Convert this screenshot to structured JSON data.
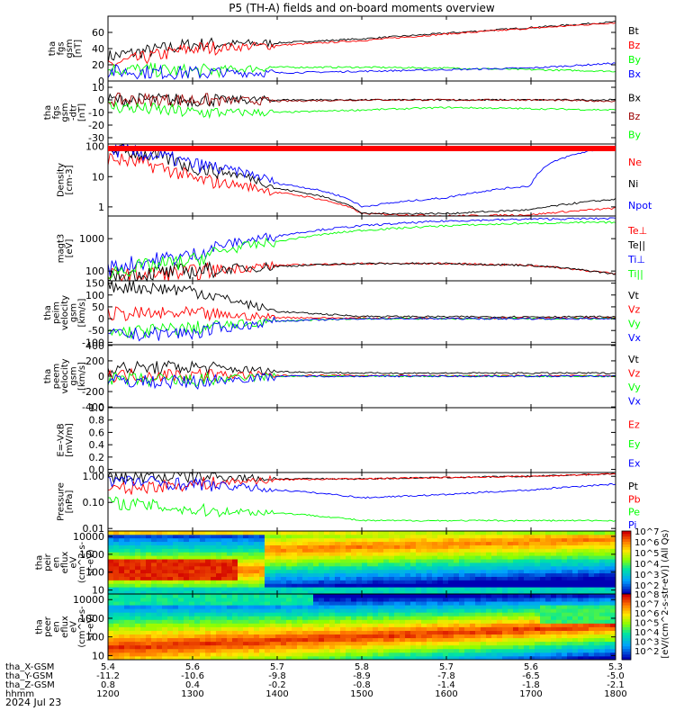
{
  "page": {
    "title": "P5 (TH-A) fields and on-board moments overview",
    "date": "2024 Jul 23",
    "cbar_label": "[eV/(cm^2-s-str-eV)] (All Qs)"
  },
  "colors": {
    "black": "#000000",
    "red": "#ff0000",
    "green": "#00ff00",
    "blue": "#0000ff",
    "darkred": "#9b0000"
  },
  "time": {
    "start_hhmm": "1200",
    "end_hhmm": "1800"
  },
  "ephemeris": {
    "rows": [
      {
        "label": "tha_X-GSM",
        "values": [
          "5.4",
          "5.6",
          "5.7",
          "5.8",
          "5.7",
          "5.6",
          "5.3"
        ]
      },
      {
        "label": "tha_Y-GSM",
        "values": [
          "-11.2",
          "-10.6",
          "-9.8",
          "-8.9",
          "-7.8",
          "-6.5",
          "-5.0"
        ]
      },
      {
        "label": "tha_Z-GSM",
        "values": [
          "0.8",
          "0.4",
          "-0.2",
          "-0.8",
          "-1.4",
          "-1.8",
          "-2.1"
        ]
      },
      {
        "label": "hhmm",
        "values": [
          "1200",
          "1300",
          "1400",
          "1500",
          "1600",
          "1700",
          "1800"
        ]
      }
    ]
  },
  "chart_data": [
    {
      "id": "fgs_gsm",
      "type": "line",
      "ylabel": [
        "tha",
        "fgs",
        "gsm",
        "[nT]"
      ],
      "ylim": [
        0,
        80
      ],
      "yticks": [
        "0",
        "20",
        "40",
        "60"
      ],
      "series": [
        {
          "name": "Bt",
          "color": "#000000",
          "x": [
            "1200",
            "1300",
            "1400",
            "1500",
            "1600",
            "1700",
            "1800"
          ],
          "values": [
            30,
            45,
            47,
            52,
            59,
            66,
            73
          ]
        },
        {
          "name": "Bz",
          "color": "#ff0000",
          "x": [
            "1200",
            "1300",
            "1400",
            "1500",
            "1600",
            "1700",
            "1800"
          ],
          "values": [
            20,
            40,
            44,
            50,
            58,
            65,
            72
          ]
        },
        {
          "name": "By",
          "color": "#00ff00",
          "x": [
            "1200",
            "1300",
            "1400",
            "1500",
            "1600",
            "1700",
            "1800"
          ],
          "values": [
            15,
            12,
            17,
            17,
            16,
            14,
            12
          ]
        },
        {
          "name": "Bx",
          "color": "#0000ff",
          "x": [
            "1200",
            "1300",
            "1400",
            "1500",
            "1600",
            "1700",
            "1800"
          ],
          "values": [
            12,
            10,
            10,
            12,
            14,
            16,
            22
          ]
        }
      ]
    },
    {
      "id": "fgs_gsm_dtrend",
      "type": "line",
      "ylabel": [
        "tha",
        "fgs",
        "gsm",
        "-dtr",
        "[nT]"
      ],
      "ylim": [
        -35,
        15
      ],
      "yticks": [
        "-30",
        "-20",
        "-10",
        "0",
        "10"
      ],
      "series": [
        {
          "name": "Bx",
          "color": "#000000",
          "x": [
            "1200",
            "1300",
            "1400",
            "1500",
            "1600",
            "1700",
            "1800"
          ],
          "values": [
            0,
            0,
            0,
            0,
            0,
            0,
            0
          ]
        },
        {
          "name": "Bz",
          "color": "#9b0000",
          "x": [
            "1200",
            "1300",
            "1400",
            "1500",
            "1600",
            "1700",
            "1800"
          ],
          "values": [
            0,
            0,
            -1,
            0,
            0,
            0,
            -1
          ]
        },
        {
          "name": "By",
          "color": "#00ff00",
          "x": [
            "1200",
            "1300",
            "1400",
            "1500",
            "1600",
            "1700",
            "1800"
          ],
          "values": [
            -5,
            -10,
            -10,
            -8,
            -6,
            -7,
            -8
          ]
        }
      ]
    },
    {
      "id": "density",
      "type": "line",
      "yscale": "log",
      "ylabel": [
        "Density",
        "[cm-3]"
      ],
      "ylim": [
        0.5,
        120
      ],
      "yticks": [
        "1",
        "10",
        "100"
      ],
      "series": [
        {
          "name": "Ne",
          "color": "#ff0000",
          "x": [
            "1200",
            "1300",
            "1400",
            "1500",
            "1600",
            "1700",
            "1800"
          ],
          "values": [
            40,
            8,
            3,
            0.6,
            0.5,
            0.55,
            0.9
          ]
        },
        {
          "name": "Ni",
          "color": "#000000",
          "x": [
            "1200",
            "1300",
            "1400",
            "1500",
            "1600",
            "1700",
            "1800"
          ],
          "values": [
            80,
            20,
            4,
            0.6,
            0.6,
            0.8,
            1.8
          ]
        },
        {
          "name": "Npot",
          "color": "#0000ff",
          "x": [
            "1200",
            "1300",
            "1400",
            "1500",
            "1600",
            "1700",
            "1800"
          ],
          "values": [
            80,
            25,
            6,
            1.0,
            2,
            5,
            100
          ]
        }
      ]
    },
    {
      "id": "temperature",
      "type": "line",
      "yscale": "log",
      "ylabel": [
        "magt3",
        "[eV]"
      ],
      "ylim": [
        50,
        5000
      ],
      "yticks": [
        "100",
        "1000"
      ],
      "series": [
        {
          "name": "Te⊥",
          "color": "#ff0000",
          "x": [
            "1200",
            "1300",
            "1400",
            "1500",
            "1600",
            "1700",
            "1800"
          ],
          "values": [
            70,
            90,
            150,
            170,
            170,
            150,
            80
          ]
        },
        {
          "name": "Te||",
          "color": "#000000",
          "x": [
            "1200",
            "1300",
            "1400",
            "1500",
            "1600",
            "1700",
            "1800"
          ],
          "values": [
            70,
            100,
            140,
            170,
            170,
            150,
            80
          ]
        },
        {
          "name": "Ti⊥",
          "color": "#0000ff",
          "x": [
            "1200",
            "1300",
            "1400",
            "1500",
            "1600",
            "1700",
            "1800"
          ],
          "values": [
            120,
            300,
            1200,
            2500,
            3500,
            4000,
            4200
          ]
        },
        {
          "name": "Ti||",
          "color": "#00ff00",
          "x": [
            "1200",
            "1300",
            "1400",
            "1500",
            "1600",
            "1700",
            "1800"
          ],
          "values": [
            90,
            200,
            800,
            1800,
            2500,
            3000,
            3200
          ]
        }
      ]
    },
    {
      "id": "peim_velocity",
      "type": "line",
      "ylabel": [
        "tha",
        "peim",
        "velocity",
        "gsm",
        "[km/s]"
      ],
      "ylim": [
        -110,
        160
      ],
      "yticks": [
        "-100",
        "-50",
        "0",
        "50",
        "100",
        "150"
      ],
      "series": [
        {
          "name": "Vt",
          "color": "#000000",
          "x": [
            "1200",
            "1300",
            "1400",
            "1500",
            "1600",
            "1700",
            "1800"
          ],
          "values": [
            140,
            120,
            30,
            10,
            8,
            8,
            8
          ]
        },
        {
          "name": "Vz",
          "color": "#ff0000",
          "x": [
            "1200",
            "1300",
            "1400",
            "1500",
            "1600",
            "1700",
            "1800"
          ],
          "values": [
            20,
            20,
            5,
            2,
            2,
            2,
            2
          ]
        },
        {
          "name": "Vy",
          "color": "#00ff00",
          "x": [
            "1200",
            "1300",
            "1400",
            "1500",
            "1600",
            "1700",
            "1800"
          ],
          "values": [
            -60,
            -40,
            -10,
            0,
            0,
            0,
            0
          ]
        },
        {
          "name": "Vx",
          "color": "#0000ff",
          "x": [
            "1200",
            "1300",
            "1400",
            "1500",
            "1600",
            "1700",
            "1800"
          ],
          "values": [
            -70,
            -60,
            -10,
            0,
            0,
            0,
            0
          ]
        }
      ]
    },
    {
      "id": "peem_velocity",
      "type": "line",
      "ylabel": [
        "tha",
        "peem",
        "velocity",
        "gsm",
        "[km/s]"
      ],
      "ylim": [
        -410,
        410
      ],
      "yticks": [
        "-400",
        "-200",
        "0",
        "200",
        "400"
      ],
      "series": [
        {
          "name": "Vt",
          "color": "#000000",
          "x": [
            "1200",
            "1300",
            "1400",
            "1500",
            "1600",
            "1700",
            "1800"
          ],
          "values": [
            100,
            120,
            60,
            40,
            40,
            40,
            40
          ]
        },
        {
          "name": "Vz",
          "color": "#ff0000",
          "x": [
            "1200",
            "1300",
            "1400",
            "1500",
            "1600",
            "1700",
            "1800"
          ],
          "values": [
            10,
            20,
            10,
            10,
            5,
            5,
            5
          ]
        },
        {
          "name": "Vy",
          "color": "#00ff00",
          "x": [
            "1200",
            "1300",
            "1400",
            "1500",
            "1600",
            "1700",
            "1800"
          ],
          "values": [
            -40,
            -60,
            0,
            0,
            0,
            0,
            0
          ]
        },
        {
          "name": "Vx",
          "color": "#0000ff",
          "x": [
            "1200",
            "1300",
            "1400",
            "1500",
            "1600",
            "1700",
            "1800"
          ],
          "values": [
            -60,
            -80,
            0,
            0,
            0,
            0,
            0
          ]
        }
      ]
    },
    {
      "id": "efield",
      "type": "line",
      "ylabel": [
        "E=-VxB",
        "[mV/m]"
      ],
      "ylim": [
        -0.05,
        1.0
      ],
      "yticks": [
        "0.0",
        "0.2",
        "0.4",
        "0.6",
        "0.8",
        "1.0"
      ],
      "series": [
        {
          "name": "Ez",
          "color": "#ff0000",
          "x": [],
          "values": []
        },
        {
          "name": "Ey",
          "color": "#00ff00",
          "x": [],
          "values": []
        },
        {
          "name": "Ex",
          "color": "#0000ff",
          "x": [],
          "values": []
        }
      ]
    },
    {
      "id": "pressure",
      "type": "line",
      "yscale": "log",
      "ylabel": [
        "Pressure",
        "[nPa]"
      ],
      "ylim": [
        0.008,
        1.4
      ],
      "yticks": [
        "0.01",
        "0.10",
        "1.00"
      ],
      "series": [
        {
          "name": "Pt",
          "color": "#000000",
          "x": [
            "1200",
            "1300",
            "1400",
            "1500",
            "1600",
            "1700",
            "1800"
          ],
          "values": [
            0.9,
            1.0,
            0.8,
            0.8,
            0.9,
            1.0,
            1.25
          ]
        },
        {
          "name": "Pb",
          "color": "#ff0000",
          "x": [
            "1200",
            "1300",
            "1400",
            "1500",
            "1600",
            "1700",
            "1800"
          ],
          "values": [
            0.3,
            0.5,
            0.75,
            0.8,
            0.9,
            1.0,
            1.25
          ]
        },
        {
          "name": "Pe",
          "color": "#00ff00",
          "x": [
            "1200",
            "1300",
            "1400",
            "1500",
            "1600",
            "1700",
            "1800"
          ],
          "values": [
            0.1,
            0.05,
            0.04,
            0.02,
            0.02,
            0.02,
            0.02
          ]
        },
        {
          "name": "Pi",
          "color": "#0000ff",
          "x": [
            "1200",
            "1300",
            "1400",
            "1500",
            "1600",
            "1700",
            "1800"
          ],
          "values": [
            0.7,
            0.5,
            0.3,
            0.15,
            0.2,
            0.3,
            0.5
          ]
        }
      ]
    },
    {
      "id": "peir_eflux",
      "type": "heatmap",
      "yscale": "log",
      "ylabel": [
        "tha",
        "peir",
        "en",
        "eflux",
        "eV",
        "(cm^2-s-",
        "sr-eV)"
      ],
      "ylim": [
        6,
        20000
      ],
      "yticks": [
        "10",
        "100",
        "1000",
        "10000"
      ],
      "cbar_ticks": [
        "10^2",
        "10^3",
        "10^4",
        "10^5",
        "10^6",
        "10^7"
      ]
    },
    {
      "id": "peer_eflux",
      "type": "heatmap",
      "yscale": "log",
      "ylabel": [
        "tha",
        "peer",
        "en",
        "eflux",
        "eV",
        "(cm^2-s-",
        "sr-eV)"
      ],
      "ylim": [
        6,
        20000
      ],
      "yticks": [
        "10",
        "100",
        "1000",
        "10000"
      ],
      "cbar_ticks": [
        "10^2",
        "10^3",
        "10^4",
        "10^5",
        "10^6",
        "10^7",
        "10^8"
      ]
    }
  ]
}
